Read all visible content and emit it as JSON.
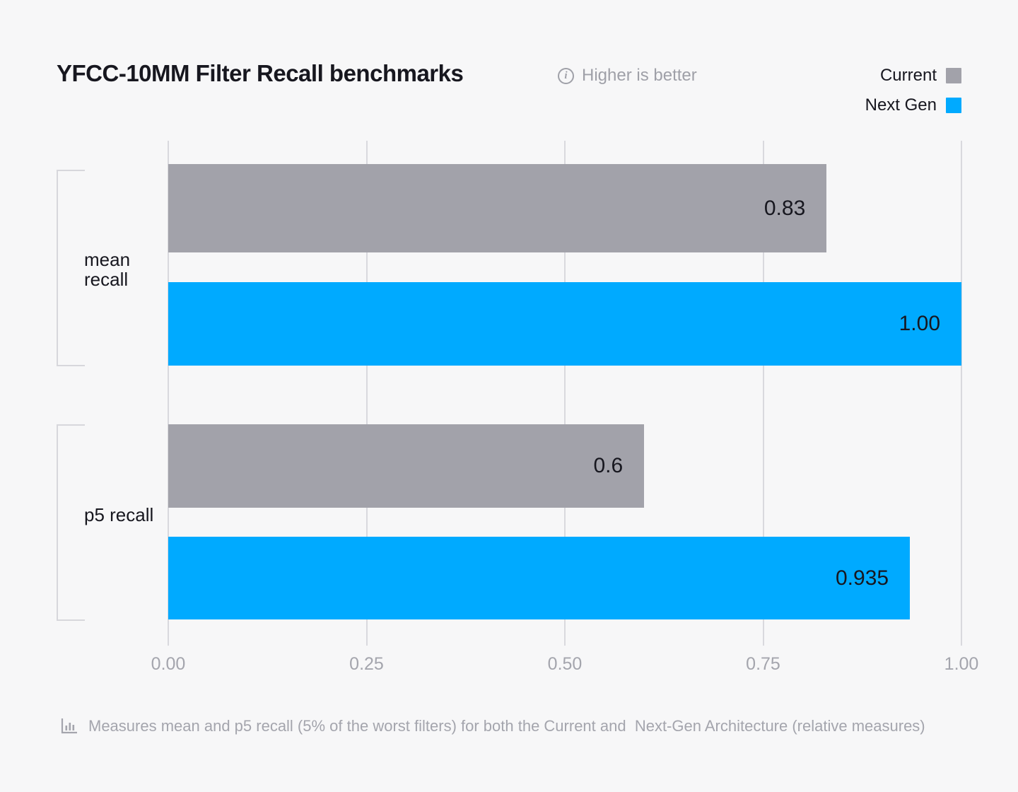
{
  "header": {
    "title": "YFCC-10MM Filter Recall benchmarks",
    "note": "Higher is better",
    "legend": [
      {
        "label": "Current",
        "color": "#a2a2aa"
      },
      {
        "label": "Next Gen",
        "color": "#00aaff"
      }
    ]
  },
  "chart_data": {
    "type": "bar",
    "orientation": "horizontal",
    "title": "YFCC-10MM Filter Recall benchmarks",
    "annotation": "Higher is better",
    "categories": [
      "mean recall",
      "p5 recall"
    ],
    "series": [
      {
        "name": "Current",
        "color": "#a2a2aa",
        "values": [
          0.83,
          0.6
        ],
        "value_labels": [
          "0.83",
          "0.6"
        ]
      },
      {
        "name": "Next Gen",
        "color": "#00aaff",
        "values": [
          1.0,
          0.935
        ],
        "value_labels": [
          "1.00",
          "0.935"
        ]
      }
    ],
    "xlim": [
      0,
      1
    ],
    "x_ticks": [
      "0.00",
      "0.25",
      "0.50",
      "0.75",
      "1.00"
    ],
    "grid": "vertical",
    "legend_position": "top-right"
  },
  "footer": {
    "icon": "bar-chart-icon",
    "text": "Measures mean and p5 recall (5% of the worst filters) for both the Current and  Next-Gen Architecture (relative measures)"
  },
  "colors": {
    "background": "#f7f7f8",
    "current_bar": "#a2a2aa",
    "next_gen_bar": "#00aaff",
    "text_dark": "#17171f",
    "text_muted": "#a4a5ad",
    "gridline": "#d9d9de"
  }
}
